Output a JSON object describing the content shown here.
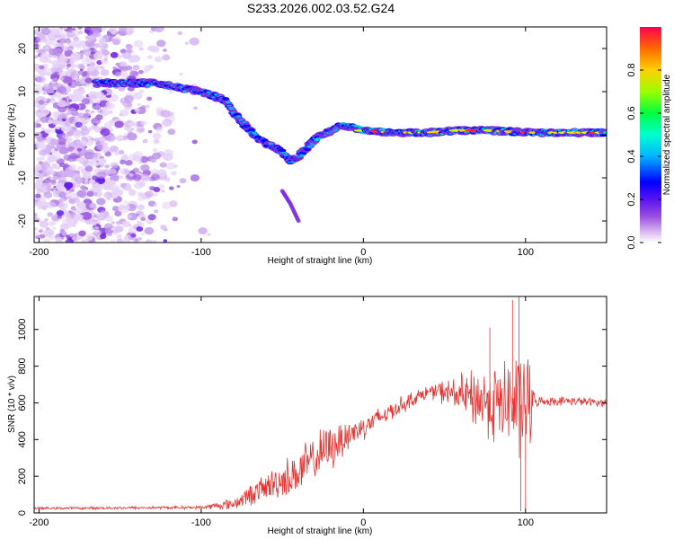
{
  "figure_title": "S233.2026.002.03.52.G24",
  "chart_data": [
    {
      "type": "heatmap",
      "name": "spectrogram",
      "xlabel": "Height of straight line (km)",
      "ylabel": "Frequency (Hz)",
      "xlim": [
        -203,
        150
      ],
      "ylim": [
        -25,
        25
      ],
      "xticks": [
        -200,
        -100,
        0,
        100
      ],
      "yticks": [
        20,
        10,
        0,
        -10,
        -20
      ],
      "xtick_labels": [
        "-200",
        "-100",
        "0",
        "100"
      ],
      "ytick_labels": [
        "20",
        "10",
        "0",
        "-10",
        "-20"
      ],
      "ridge": [
        {
          "x": -165,
          "y": 12
        },
        {
          "x": -130,
          "y": 12
        },
        {
          "x": -115,
          "y": 11
        },
        {
          "x": -100,
          "y": 10
        },
        {
          "x": -85,
          "y": 8
        },
        {
          "x": -80,
          "y": 5
        },
        {
          "x": -75,
          "y": 3
        },
        {
          "x": -70,
          "y": 1
        },
        {
          "x": -65,
          "y": -1
        },
        {
          "x": -60,
          "y": -2
        },
        {
          "x": -55,
          "y": -3
        },
        {
          "x": -50,
          "y": -4
        },
        {
          "x": -45,
          "y": -6
        },
        {
          "x": -40,
          "y": -5
        },
        {
          "x": -35,
          "y": -3
        },
        {
          "x": -30,
          "y": -1
        },
        {
          "x": -25,
          "y": 0
        },
        {
          "x": -20,
          "y": 1
        },
        {
          "x": -15,
          "y": 2
        },
        {
          "x": -10,
          "y": 2
        },
        {
          "x": 0,
          "y": 1
        },
        {
          "x": 20,
          "y": 0.5
        },
        {
          "x": 40,
          "y": 0.5
        },
        {
          "x": 60,
          "y": 1
        },
        {
          "x": 80,
          "y": 1
        },
        {
          "x": 100,
          "y": 0.5
        },
        {
          "x": 120,
          "y": 0.5
        },
        {
          "x": 150,
          "y": 0.5
        }
      ],
      "branch": [
        {
          "x": -50,
          "y": -13
        },
        {
          "x": -45,
          "y": -16
        },
        {
          "x": -40,
          "y": -20
        }
      ],
      "colorbar": {
        "label": "Normalized spectral amplitude",
        "min": 0,
        "max": 1,
        "ticks": [
          0.0,
          0.2,
          0.4,
          0.6,
          0.8
        ],
        "tick_labels": [
          "0.0",
          "0.2",
          "0.4",
          "0.6",
          "0.8"
        ]
      }
    },
    {
      "type": "line",
      "name": "snr",
      "xlabel": "Height of straight line (km)",
      "ylabel": "SNR (10 * v/v)",
      "xlim": [
        -203,
        150
      ],
      "ylim": [
        0,
        1180
      ],
      "xticks": [
        -200,
        -100,
        0,
        100
      ],
      "yticks": [
        0,
        200,
        400,
        600,
        800,
        1000
      ],
      "xtick_labels": [
        "-200",
        "-100",
        "0",
        "100"
      ],
      "ytick_labels": [
        "0",
        "200",
        "400",
        "600",
        "800",
        "1000"
      ],
      "series": [
        {
          "name": "SNR",
          "color": "#e8312f",
          "trend": [
            {
              "x": -203,
              "y": 25
            },
            {
              "x": -100,
              "y": 30
            },
            {
              "x": -80,
              "y": 50
            },
            {
              "x": -65,
              "y": 120
            },
            {
              "x": -50,
              "y": 180
            },
            {
              "x": -40,
              "y": 220
            },
            {
              "x": -30,
              "y": 300
            },
            {
              "x": -20,
              "y": 360
            },
            {
              "x": -10,
              "y": 420
            },
            {
              "x": 0,
              "y": 470
            },
            {
              "x": 10,
              "y": 520
            },
            {
              "x": 20,
              "y": 570
            },
            {
              "x": 30,
              "y": 620
            },
            {
              "x": 40,
              "y": 660
            },
            {
              "x": 50,
              "y": 660
            },
            {
              "x": 60,
              "y": 640
            },
            {
              "x": 70,
              "y": 620
            },
            {
              "x": 80,
              "y": 600
            },
            {
              "x": 90,
              "y": 590
            },
            {
              "x": 100,
              "y": 590
            },
            {
              "x": 110,
              "y": 610
            },
            {
              "x": 130,
              "y": 610
            },
            {
              "x": 150,
              "y": 600
            }
          ],
          "noise_amplitude": [
            {
              "x": -203,
              "y": 8
            },
            {
              "x": -100,
              "y": 10
            },
            {
              "x": -80,
              "y": 40
            },
            {
              "x": -60,
              "y": 90
            },
            {
              "x": -40,
              "y": 150
            },
            {
              "x": -20,
              "y": 150
            },
            {
              "x": 0,
              "y": 80
            },
            {
              "x": 20,
              "y": 60
            },
            {
              "x": 40,
              "y": 40
            },
            {
              "x": 55,
              "y": 100
            },
            {
              "x": 70,
              "y": 200
            },
            {
              "x": 85,
              "y": 280
            },
            {
              "x": 95,
              "y": 350
            },
            {
              "x": 102,
              "y": 350
            },
            {
              "x": 106,
              "y": 30
            },
            {
              "x": 150,
              "y": 25
            }
          ],
          "spikes": [
            {
              "x": 78,
              "y": 1010
            },
            {
              "x": 92,
              "y": 1160
            },
            {
              "x": 96,
              "y": 1180
            },
            {
              "x": 97,
              "y": 10
            },
            {
              "x": 100,
              "y": 20
            }
          ]
        }
      ]
    }
  ]
}
